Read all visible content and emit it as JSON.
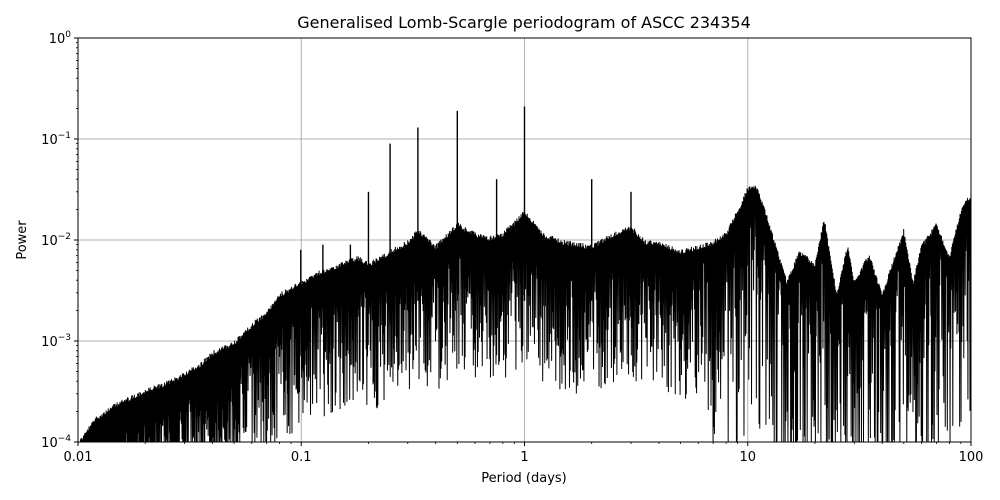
{
  "chart_data": {
    "type": "line",
    "title": "Generalised Lomb-Scargle periodogram of ASCC 234354",
    "xlabel": "Period (days)",
    "ylabel": "Power",
    "xscale": "log",
    "yscale": "log",
    "xlim": [
      0.01,
      100
    ],
    "ylim": [
      0.0001,
      1
    ],
    "grid": true,
    "line_color": "#000000",
    "x_ticks": [
      {
        "value": 0.01,
        "label": "0.01"
      },
      {
        "value": 0.1,
        "label": "0.1"
      },
      {
        "value": 1,
        "label": "1"
      },
      {
        "value": 10,
        "label": "10"
      },
      {
        "value": 100,
        "label": "100"
      }
    ],
    "y_ticks": [
      {
        "value": 0.0001,
        "base": "10",
        "exp": "−4"
      },
      {
        "value": 0.001,
        "base": "10",
        "exp": "−3"
      },
      {
        "value": 0.01,
        "base": "10",
        "exp": "−2"
      },
      {
        "value": 0.1,
        "base": "10",
        "exp": "−1"
      },
      {
        "value": 1,
        "base": "10",
        "exp": "0"
      }
    ],
    "series": [
      {
        "x": [
          0.01,
          0.012,
          0.015,
          0.018,
          0.021,
          0.025,
          0.03,
          0.035,
          0.04,
          0.05,
          0.06,
          0.07,
          0.08,
          0.1,
          0.12,
          0.15,
          0.18,
          0.2,
          0.25,
          0.3,
          0.333,
          0.4,
          0.5,
          0.6,
          0.7,
          0.8,
          1.0,
          1.2,
          1.5,
          2.0,
          2.5,
          3.0,
          3.5,
          4.0,
          5.0,
          6.0,
          7.0,
          8.0,
          9.0,
          10.0,
          11.0,
          12.0,
          13.0,
          15.0,
          17.0,
          20.0,
          22.0,
          25.0,
          28.0,
          30.0,
          35.0,
          40.0,
          50.0,
          55.0,
          60.0,
          70.0,
          80.0,
          90.0,
          100.0
        ],
        "y": [
          0.0001,
          0.00018,
          0.00025,
          0.0003,
          0.00035,
          0.0004,
          0.0005,
          0.0006,
          0.0008,
          0.001,
          0.0015,
          0.002,
          0.003,
          0.004,
          0.005,
          0.006,
          0.007,
          0.006,
          0.008,
          0.01,
          0.013,
          0.009,
          0.015,
          0.012,
          0.011,
          0.012,
          0.02,
          0.012,
          0.01,
          0.009,
          0.012,
          0.014,
          0.01,
          0.01,
          0.008,
          0.009,
          0.01,
          0.012,
          0.02,
          0.034,
          0.035,
          0.02,
          0.011,
          0.004,
          0.008,
          0.006,
          0.017,
          0.003,
          0.009,
          0.004,
          0.0075,
          0.003,
          0.013,
          0.004,
          0.009,
          0.015,
          0.007,
          0.02,
          0.03
        ]
      }
    ],
    "peaks": [
      {
        "x": 0.0995,
        "y": 0.008
      },
      {
        "x": 0.125,
        "y": 0.009
      },
      {
        "x": 0.166,
        "y": 0.009
      },
      {
        "x": 0.2,
        "y": 0.03
      },
      {
        "x": 0.25,
        "y": 0.09
      },
      {
        "x": 0.333,
        "y": 0.13
      },
      {
        "x": 0.5,
        "y": 0.19
      },
      {
        "x": 0.75,
        "y": 0.04
      },
      {
        "x": 1.0,
        "y": 0.21
      },
      {
        "x": 2.0,
        "y": 0.04
      },
      {
        "x": 3.0,
        "y": 0.03
      }
    ]
  }
}
